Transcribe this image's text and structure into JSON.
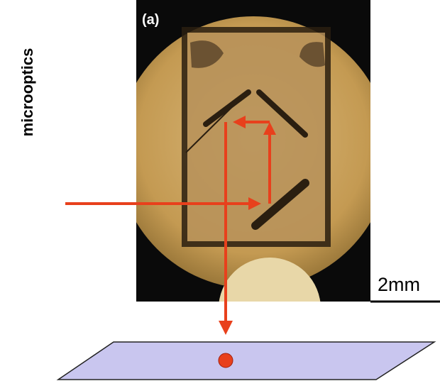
{
  "panel_label": "(a)",
  "side_label": "microoptics",
  "scale_bar": "2mm"
}
